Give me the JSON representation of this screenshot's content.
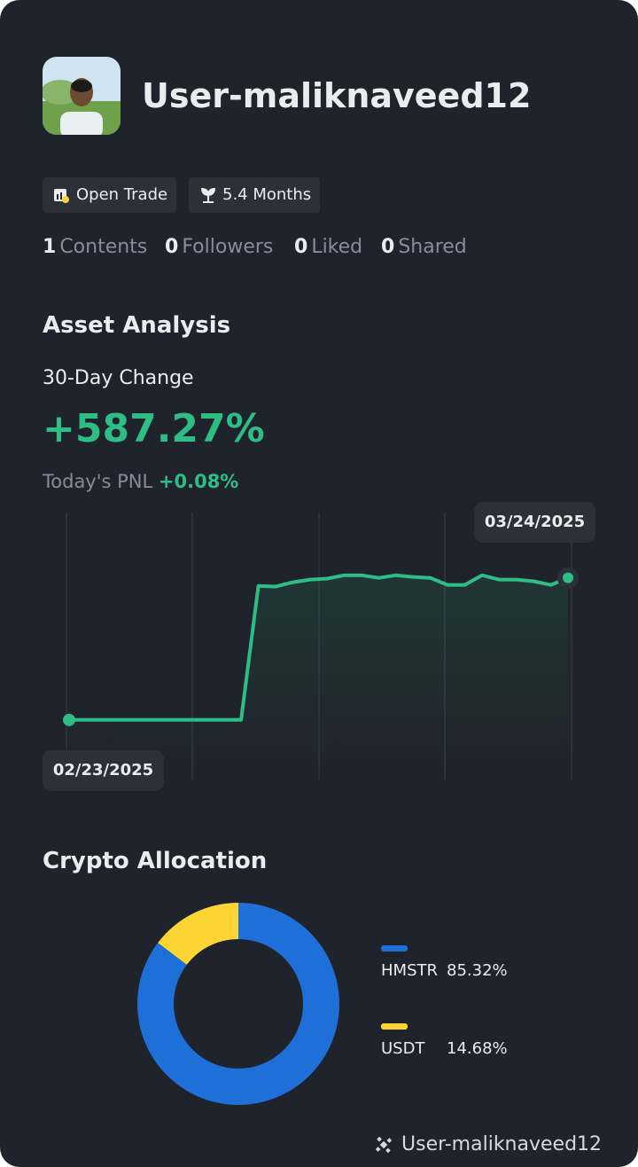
{
  "profile": {
    "username": "User-maliknaveed12",
    "badges": [
      "Open Trade",
      "5.4 Months"
    ],
    "stats": [
      {
        "value": 1,
        "label": "Contents"
      },
      {
        "value": 0,
        "label": "Followers"
      },
      {
        "value": 0,
        "label": "Liked"
      },
      {
        "value": 0,
        "label": "Shared"
      }
    ]
  },
  "asset_analysis": {
    "title": "Asset Analysis",
    "change_label": "30-Day Change",
    "change": "+587.27%",
    "pnl_label": "Today's PNL",
    "pnl": "+0.08%"
  },
  "chart_data": [
    {
      "type": "line",
      "color": "#2ebd85",
      "categories": [
        "02/23/2025",
        null,
        null,
        null,
        null,
        null,
        null,
        null,
        null,
        null,
        null,
        null,
        null,
        null,
        null,
        null,
        null,
        null,
        null,
        null,
        null,
        null,
        null,
        null,
        null,
        null,
        null,
        null,
        null,
        "03/24/2025"
      ],
      "values": [
        0,
        0,
        0,
        0,
        0,
        0,
        0,
        0,
        0,
        0,
        0,
        554,
        551,
        569,
        580,
        584,
        598,
        598,
        587,
        598,
        591,
        587,
        558,
        558,
        598,
        580,
        580,
        573,
        558,
        587.27
      ],
      "ylim": [
        -250,
        850
      ]
    },
    {
      "type": "donut",
      "title": "Crypto Allocation",
      "series": [
        {
          "name": "HMSTR",
          "color": "#1f6fd8",
          "values": [
            85.32
          ],
          "value_labels": [
            "85.32%"
          ]
        },
        {
          "name": "USDT",
          "color": "#fcd535",
          "values": [
            14.68
          ],
          "value_labels": [
            "14.68%"
          ]
        }
      ]
    }
  ],
  "watermark": "User-maliknaveed12"
}
